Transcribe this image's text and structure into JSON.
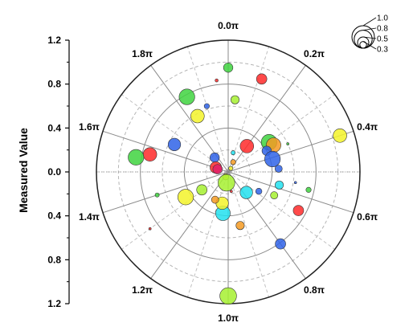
{
  "chart_data": {
    "type": "scatter",
    "subtype": "polar-bubble",
    "title": "",
    "ylabel": "Measured Value",
    "radial_range": [
      0,
      1.2
    ],
    "radial_ticks": [
      "1.2",
      "0.8",
      "0.4",
      "0.0",
      "0.4",
      "0.8",
      "1.2"
    ],
    "angle_ticks": [
      "0.0π",
      "0.2π",
      "0.4π",
      "0.6π",
      "0.8π",
      "1.0π",
      "1.2π",
      "1.4π",
      "1.6π",
      "1.8π"
    ],
    "grid": true,
    "legend": {
      "placement": "top-right",
      "labels": [
        "1.0",
        "0.8",
        "0.5",
        "0.3"
      ],
      "sizes": [
        1.0,
        0.8,
        0.5,
        0.3
      ]
    },
    "colors": {
      "red": "#ff2a2a",
      "green": "#3fd43f",
      "blue": "#2f63e8",
      "yellow": "#f3f32a",
      "cyan": "#22e0ee",
      "orange": "#f59a22",
      "magenta": "#e0206a",
      "lime": "#a6f030"
    },
    "points": [
      {
        "theta": 0.0,
        "r": 0.95,
        "size": 0.45,
        "color": "green"
      },
      {
        "theta": 0.11,
        "r": 0.9,
        "size": 0.5,
        "color": "red"
      },
      {
        "theta": 0.03,
        "r": 0.66,
        "size": 0.4,
        "color": "lime"
      },
      {
        "theta": 1.96,
        "r": 0.84,
        "size": 0.15,
        "color": "red"
      },
      {
        "theta": 1.9,
        "r": 0.63,
        "size": 0.25,
        "color": "blue"
      },
      {
        "theta": 1.84,
        "r": 0.78,
        "size": 0.75,
        "color": "green"
      },
      {
        "theta": 1.84,
        "r": 0.58,
        "size": 0.65,
        "color": "yellow"
      },
      {
        "theta": 0.4,
        "r": 1.07,
        "size": 0.65,
        "color": "yellow"
      },
      {
        "theta": 0.2,
        "r": 0.29,
        "size": 0.65,
        "color": "red"
      },
      {
        "theta": 0.3,
        "r": 0.46,
        "size": 0.75,
        "color": "green"
      },
      {
        "theta": 0.33,
        "r": 0.48,
        "size": 0.7,
        "color": "orange"
      },
      {
        "theta": 0.34,
        "r": 0.4,
        "size": 0.45,
        "color": "blue"
      },
      {
        "theta": 0.36,
        "r": 0.6,
        "size": 0.1,
        "color": "green"
      },
      {
        "theta": 0.41,
        "r": 0.42,
        "size": 0.75,
        "color": "blue"
      },
      {
        "theta": 0.48,
        "r": 0.46,
        "size": 0.35,
        "color": "blue"
      },
      {
        "theta": 0.57,
        "r": 0.75,
        "size": 0.25,
        "color": "green"
      },
      {
        "theta": 0.58,
        "r": 0.48,
        "size": 0.4,
        "color": "cyan"
      },
      {
        "theta": 0.65,
        "r": 0.47,
        "size": 0.35,
        "color": "lime"
      },
      {
        "theta": 0.68,
        "r": 0.33,
        "size": 0.3,
        "color": "blue"
      },
      {
        "theta": 0.66,
        "r": 0.73,
        "size": 0.5,
        "color": "red"
      },
      {
        "theta": 0.8,
        "r": 0.81,
        "size": 0.5,
        "color": "blue"
      },
      {
        "theta": 0.77,
        "r": 0.25,
        "size": 0.6,
        "color": "cyan"
      },
      {
        "theta": 0.93,
        "r": 0.5,
        "size": 0.4,
        "color": "orange"
      },
      {
        "theta": 1.0,
        "r": 1.13,
        "size": 0.8,
        "color": "lime"
      },
      {
        "theta": 1.04,
        "r": 0.38,
        "size": 0.7,
        "color": "cyan"
      },
      {
        "theta": 1.06,
        "r": 0.29,
        "size": 0.6,
        "color": "yellow"
      },
      {
        "theta": 1.14,
        "r": 0.28,
        "size": 0.35,
        "color": "orange"
      },
      {
        "theta": 1.4,
        "r": 0.68,
        "size": 0.2,
        "color": "green"
      },
      {
        "theta": 1.33,
        "r": 0.45,
        "size": 0.75,
        "color": "yellow"
      },
      {
        "theta": 1.15,
        "r": 0.05,
        "size": 0.3,
        "color": "yellow"
      },
      {
        "theta": 1.05,
        "r": 0.1,
        "size": 0.8,
        "color": "lime"
      },
      {
        "theta": 1.31,
        "r": 0.29,
        "size": 0.5,
        "color": "lime"
      },
      {
        "theta": 1.57,
        "r": 0.73,
        "size": 0.65,
        "color": "red"
      },
      {
        "theta": 1.55,
        "r": 0.85,
        "size": 0.75,
        "color": "green"
      },
      {
        "theta": 1.65,
        "r": 0.55,
        "size": 0.6,
        "color": "blue"
      },
      {
        "theta": 1.76,
        "r": 0.18,
        "size": 0.45,
        "color": "blue"
      },
      {
        "theta": 1.61,
        "r": 0.12,
        "size": 0.55,
        "color": "red"
      },
      {
        "theta": 1.58,
        "r": 0.1,
        "size": 0.45,
        "color": "magenta"
      },
      {
        "theta": 0.08,
        "r": 0.18,
        "size": 0.2,
        "color": "cyan"
      },
      {
        "theta": 0.15,
        "r": 0.1,
        "size": 0.25,
        "color": "orange"
      },
      {
        "theta": 0.2,
        "r": 0.04,
        "size": 0.2,
        "color": "yellow"
      },
      {
        "theta": 1.3,
        "r": 0.88,
        "size": 0.05,
        "color": "red"
      },
      {
        "theta": 0.95,
        "r": 0.18,
        "size": 0.08,
        "color": "red"
      },
      {
        "theta": 0.55,
        "r": 0.62,
        "size": 0.06,
        "color": "blue"
      }
    ]
  }
}
